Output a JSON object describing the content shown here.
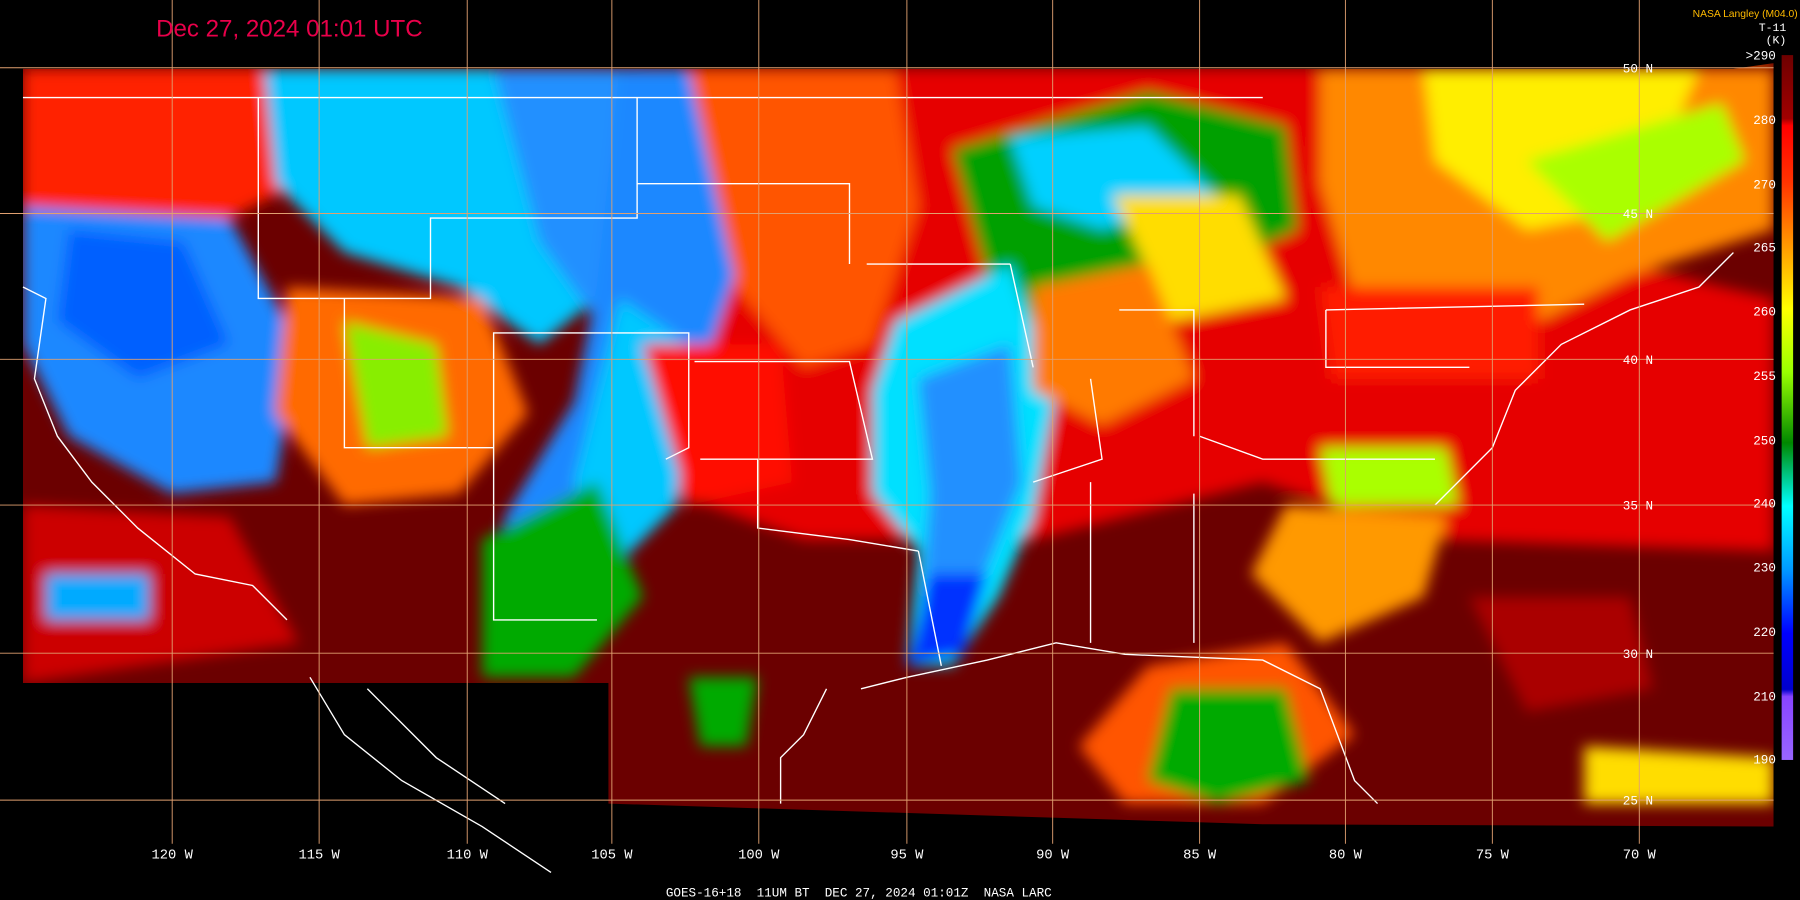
{
  "header": {
    "timestamp": "Dec 27, 2024 01:01 UTC",
    "source": "NASA Langley (M04.0)",
    "product": "T-11",
    "units": "(K)"
  },
  "colorbar": {
    "labels": [
      ">290",
      "280",
      "270",
      "265",
      "260",
      "255",
      "250",
      "240",
      "230",
      "220",
      "210",
      "190"
    ]
  },
  "latitude_labels": [
    "50 N",
    "45 N",
    "40 N",
    "35 N",
    "30 N",
    "25 N"
  ],
  "longitude_labels": [
    "120 W",
    "115 W",
    "110 W",
    "105 W",
    "100 W",
    "95 W",
    "90 W",
    "85 W",
    "80 W",
    "75 W",
    "70 W"
  ],
  "footer": "GOES-16+18  11UM BT  DEC 27, 2024 01:01Z  NASA LARC"
}
